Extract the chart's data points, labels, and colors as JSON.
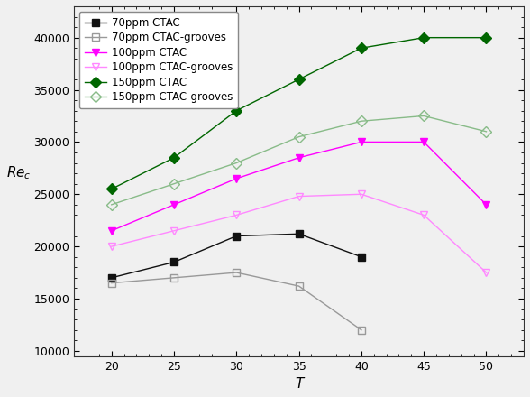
{
  "x": [
    20,
    25,
    30,
    35,
    40,
    45,
    50
  ],
  "series": [
    {
      "label": "70ppm CTAC",
      "color": "#111111",
      "marker": "s",
      "fillstyle": "full",
      "linestyle": "-",
      "values": [
        17000,
        18500,
        21000,
        21200,
        19000,
        null,
        null
      ]
    },
    {
      "label": "70ppm CTAC-grooves",
      "color": "#999999",
      "marker": "s",
      "fillstyle": "none",
      "linestyle": "-",
      "values": [
        16500,
        17000,
        17500,
        16200,
        12000,
        null,
        null
      ]
    },
    {
      "label": "100ppm CTAC",
      "color": "#ff00ff",
      "marker": "v",
      "fillstyle": "full",
      "linestyle": "-",
      "values": [
        21500,
        24000,
        26500,
        28500,
        30000,
        30000,
        24000
      ]
    },
    {
      "label": "100ppm CTAC-grooves",
      "color": "#ff88ff",
      "marker": "v",
      "fillstyle": "none",
      "linestyle": "-",
      "values": [
        20000,
        21500,
        23000,
        24800,
        25000,
        23000,
        17500
      ]
    },
    {
      "label": "150ppm CTAC",
      "color": "#006600",
      "marker": "D",
      "fillstyle": "full",
      "linestyle": "-",
      "values": [
        25500,
        28500,
        33000,
        36000,
        39000,
        40000,
        40000
      ]
    },
    {
      "label": "150ppm CTAC-grooves",
      "color": "#88bb88",
      "marker": "D",
      "fillstyle": "none",
      "linestyle": "-",
      "values": [
        24000,
        26000,
        28000,
        30500,
        32000,
        32500,
        31000
      ]
    }
  ],
  "xlabel": "T",
  "ylabel": "$Re_c$",
  "xlim": [
    17,
    53
  ],
  "ylim": [
    9500,
    43000
  ],
  "yticks": [
    10000,
    15000,
    20000,
    25000,
    30000,
    35000,
    40000
  ],
  "xticks": [
    20,
    25,
    30,
    35,
    40,
    45,
    50
  ],
  "legend_fontsize": 8.5,
  "axis_fontsize": 11
}
